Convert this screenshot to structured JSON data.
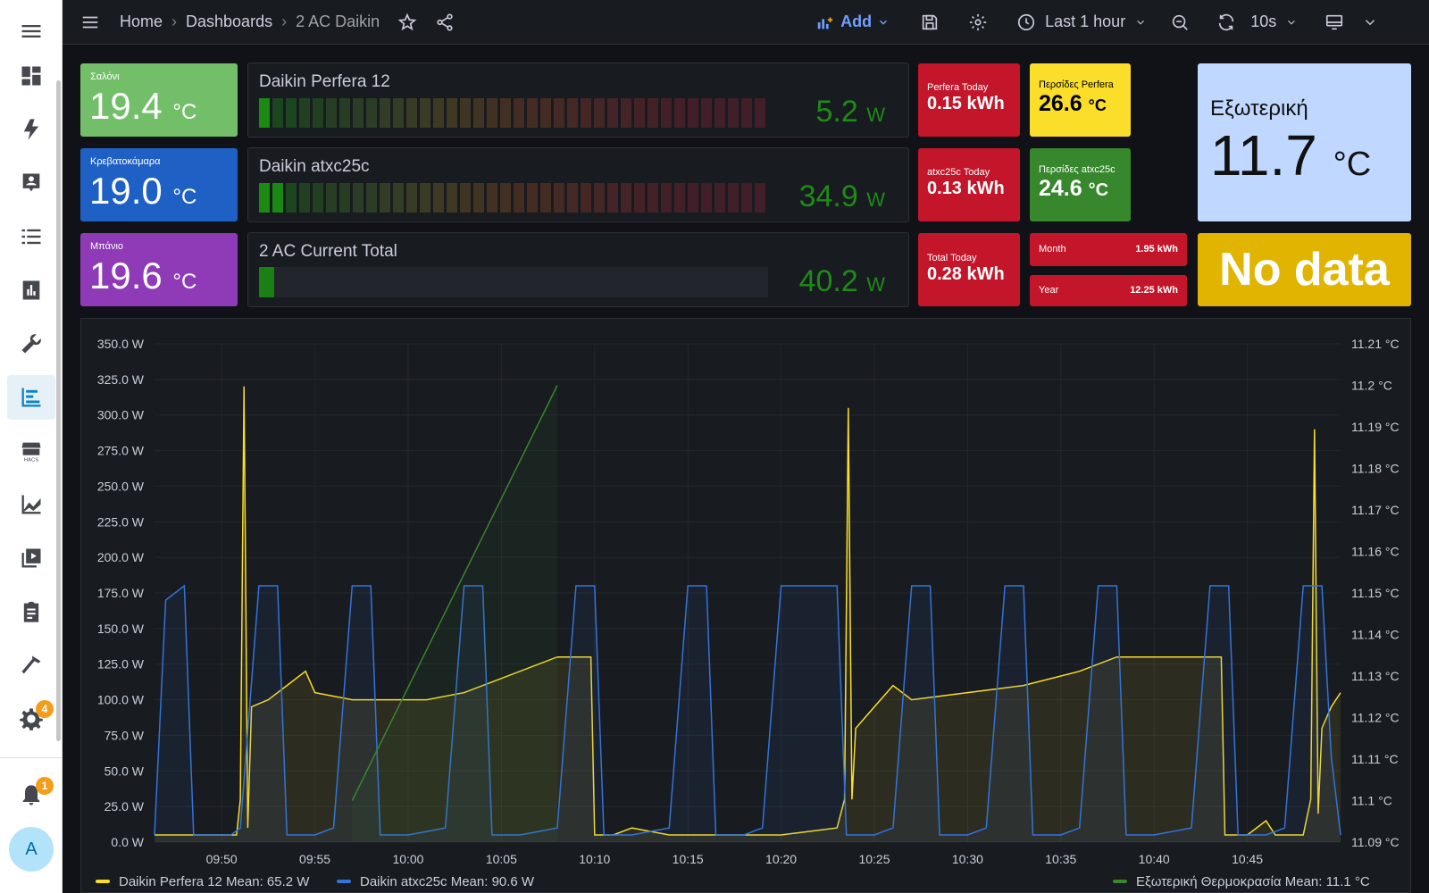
{
  "sidebar": {
    "menu_icon": "hamburger-icon",
    "items": [
      {
        "name": "overview",
        "icon": "grid-icon"
      },
      {
        "name": "energy",
        "icon": "lightning-icon"
      },
      {
        "name": "map",
        "icon": "person-card-icon"
      },
      {
        "name": "logbook",
        "icon": "list-icon"
      },
      {
        "name": "history",
        "icon": "chart-box-icon"
      },
      {
        "name": "tools",
        "icon": "wrench-icon"
      },
      {
        "name": "grafana",
        "icon": "bars-icon",
        "active": true
      },
      {
        "name": "hacs",
        "icon": "store-icon",
        "label": "HACS"
      },
      {
        "name": "statistics",
        "icon": "line-chart-icon"
      },
      {
        "name": "media",
        "icon": "play-box-icon"
      },
      {
        "name": "todo",
        "icon": "clipboard-icon"
      },
      {
        "name": "developer-tools",
        "icon": "hammer-icon"
      },
      {
        "name": "settings",
        "icon": "gear-icon",
        "badge": "4"
      }
    ],
    "notifications_badge": "1",
    "avatar_letter": "A"
  },
  "topbar": {
    "breadcrumbs": [
      "Home",
      "Dashboards",
      "2 AC Daikin"
    ],
    "add_label": "Add",
    "time_range": "Last 1 hour",
    "refresh": "10s"
  },
  "stats": {
    "saloni": {
      "label": "Σαλόνι",
      "value": "19.4",
      "unit": "°C",
      "color": "#73bf69"
    },
    "bedroom": {
      "label": "Κρεβατοκάμαρα",
      "value": "19.0",
      "unit": "°C",
      "color": "#1f60c4"
    },
    "bath": {
      "label": "Μπάνιο",
      "value": "19.6",
      "unit": "°C",
      "color": "#8f3bb8"
    },
    "perfera_today": {
      "label": "Perfera Today",
      "value": "0.15 kWh",
      "color": "#c4162a"
    },
    "atxc_today": {
      "label": "atxc25c Today",
      "value": "0.13 kWh",
      "color": "#c4162a"
    },
    "total_today": {
      "label": "Total Today",
      "value": "0.28 kWh",
      "color": "#c4162a"
    },
    "perfera_louver": {
      "label": "Περσίδες Perfera",
      "value": "26.6",
      "unit": "°C",
      "color": "#fade2a"
    },
    "atxc_louver": {
      "label": "Περσίδες atxc25c",
      "value": "24.6",
      "unit": "°C",
      "color": "#37872d"
    },
    "month": {
      "label": "Month",
      "value": "1.95 kWh"
    },
    "year": {
      "label": "Year",
      "value": "12.25 kWh"
    },
    "outdoor": {
      "label": "Εξωτερική",
      "value": "11.7",
      "unit": "°C",
      "color": "#c0d8ff"
    },
    "no_data": {
      "label": "No data",
      "color": "#e0b400"
    }
  },
  "gauges": {
    "perfera": {
      "title": "Daikin Perfera 12",
      "value": "5.2",
      "unit": "W",
      "fraction": 0.03
    },
    "atxc": {
      "title": "Daikin atxc25c",
      "value": "34.9",
      "unit": "W",
      "fraction": 0.05
    },
    "total": {
      "title": "2 AC Current Total",
      "value": "40.2",
      "unit": "W",
      "fraction": 0.03
    }
  },
  "chart_data": {
    "type": "line",
    "x_ticks": [
      "09:50",
      "09:55",
      "10:00",
      "10:05",
      "10:10",
      "10:15",
      "10:20",
      "10:25",
      "10:30",
      "10:35",
      "10:40",
      "10:45"
    ],
    "y_left_ticks": [
      "0.0 W",
      "25.0 W",
      "50.0 W",
      "75.0 W",
      "100.0 W",
      "125.0 W",
      "150.0 W",
      "175.0 W",
      "200.0 W",
      "225.0 W",
      "250.0 W",
      "275.0 W",
      "300.0 W",
      "325.0 W",
      "350.0 W"
    ],
    "y_right_ticks": [
      "11.09 °C",
      "11.1 °C",
      "11.11 °C",
      "11.12 °C",
      "11.13 °C",
      "11.14 °C",
      "11.15 °C",
      "11.16 °C",
      "11.17 °C",
      "11.18 °C",
      "11.19 °C",
      "11.2 °C",
      "11.21 °C"
    ],
    "ylim_left": [
      0,
      350
    ],
    "ylim_right": [
      11.09,
      11.21
    ],
    "xlim_minutes": [
      -3.6,
      60.0
    ],
    "series": [
      {
        "name": "Daikin Perfera 12",
        "axis": "left",
        "color": "#fade2a",
        "legend": "Daikin Perfera 12  Mean: 65.2 W",
        "points": [
          [
            -3.6,
            5
          ],
          [
            0.8,
            5
          ],
          [
            1.0,
            30
          ],
          [
            1.2,
            320
          ],
          [
            1.4,
            10
          ],
          [
            1.6,
            95
          ],
          [
            2.5,
            100
          ],
          [
            3.5,
            110
          ],
          [
            4.5,
            120
          ],
          [
            5,
            105
          ],
          [
            7,
            100
          ],
          [
            9,
            100
          ],
          [
            11,
            100
          ],
          [
            13,
            105
          ],
          [
            15,
            115
          ],
          [
            17,
            125
          ],
          [
            18,
            130
          ],
          [
            19.8,
            130
          ],
          [
            20,
            5
          ],
          [
            21,
            5
          ],
          [
            22,
            10
          ],
          [
            24,
            5
          ],
          [
            26,
            5
          ],
          [
            28,
            5
          ],
          [
            30,
            5
          ],
          [
            33,
            10
          ],
          [
            33.4,
            30
          ],
          [
            33.6,
            305
          ],
          [
            33.8,
            30
          ],
          [
            34,
            80
          ],
          [
            35,
            95
          ],
          [
            36,
            110
          ],
          [
            37,
            100
          ],
          [
            40,
            105
          ],
          [
            43,
            110
          ],
          [
            46,
            120
          ],
          [
            48,
            130
          ],
          [
            50,
            130
          ],
          [
            52,
            130
          ],
          [
            53.6,
            130
          ],
          [
            53.8,
            5
          ],
          [
            54,
            5
          ],
          [
            55,
            5
          ],
          [
            56,
            15
          ],
          [
            56.5,
            5
          ],
          [
            58,
            5
          ],
          [
            58.4,
            30
          ],
          [
            58.6,
            290
          ],
          [
            58.8,
            20
          ],
          [
            59,
            80
          ],
          [
            59.5,
            95
          ],
          [
            60,
            105
          ]
        ]
      },
      {
        "name": "Daikin atxc25c",
        "axis": "left",
        "color": "#3274d9",
        "legend": "Daikin atxc25c  Mean: 90.6 W",
        "points": [
          [
            -3.6,
            5
          ],
          [
            -3,
            170
          ],
          [
            -2,
            180
          ],
          [
            -1.5,
            5
          ],
          [
            -1,
            5
          ],
          [
            0.5,
            5
          ],
          [
            1,
            10
          ],
          [
            2,
            180
          ],
          [
            3,
            180
          ],
          [
            3.5,
            5
          ],
          [
            5,
            5
          ],
          [
            6,
            10
          ],
          [
            7,
            180
          ],
          [
            8,
            180
          ],
          [
            8.5,
            5
          ],
          [
            10,
            5
          ],
          [
            12,
            10
          ],
          [
            13,
            180
          ],
          [
            14,
            180
          ],
          [
            14.5,
            5
          ],
          [
            16,
            5
          ],
          [
            18,
            10
          ],
          [
            19,
            180
          ],
          [
            20,
            180
          ],
          [
            20.5,
            5
          ],
          [
            22,
            5
          ],
          [
            24,
            10
          ],
          [
            25,
            180
          ],
          [
            26,
            180
          ],
          [
            26.5,
            5
          ],
          [
            28,
            5
          ],
          [
            29,
            10
          ],
          [
            30,
            180
          ],
          [
            33,
            180
          ],
          [
            33.5,
            5
          ],
          [
            35,
            5
          ],
          [
            36,
            10
          ],
          [
            37,
            180
          ],
          [
            38,
            180
          ],
          [
            38.5,
            5
          ],
          [
            40,
            5
          ],
          [
            41,
            10
          ],
          [
            42,
            180
          ],
          [
            43,
            180
          ],
          [
            43.5,
            5
          ],
          [
            45,
            5
          ],
          [
            46,
            10
          ],
          [
            47,
            180
          ],
          [
            48,
            180
          ],
          [
            48.5,
            5
          ],
          [
            50,
            5
          ],
          [
            52,
            10
          ],
          [
            53,
            180
          ],
          [
            54,
            180
          ],
          [
            54.5,
            5
          ],
          [
            56,
            5
          ],
          [
            57,
            10
          ],
          [
            58,
            180
          ],
          [
            59,
            180
          ],
          [
            59.5,
            60
          ],
          [
            60,
            5
          ]
        ]
      },
      {
        "name": "Εξωτερική Θερμοκρασία",
        "axis": "right",
        "color": "#37872d",
        "legend": "Εξωτερική Θερμοκρασία  Mean: 11.1 °C",
        "points": [
          [
            7,
            11.1
          ],
          [
            18,
            11.2
          ]
        ]
      }
    ]
  }
}
